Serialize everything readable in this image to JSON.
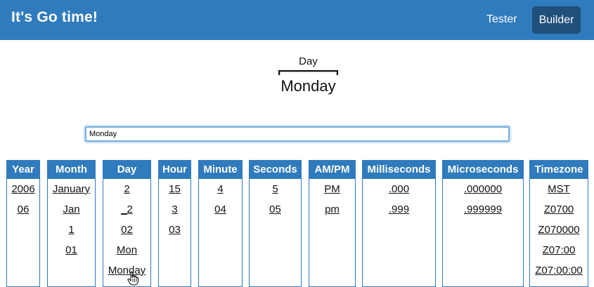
{
  "header": {
    "title": "It's Go time!",
    "nav": {
      "tester": "Tester",
      "builder": "Builder"
    }
  },
  "preview": {
    "label": "Day",
    "value": "Monday"
  },
  "format_input": {
    "value": "Monday"
  },
  "columns": [
    {
      "title": "Year",
      "options": [
        "2006",
        "06"
      ]
    },
    {
      "title": "Month",
      "options": [
        "January",
        "Jan",
        "1",
        "01"
      ]
    },
    {
      "title": "Day",
      "options": [
        "2",
        "_2",
        "02",
        "Mon",
        "Monday"
      ]
    },
    {
      "title": "Hour",
      "options": [
        "15",
        "3",
        "03"
      ]
    },
    {
      "title": "Minute",
      "options": [
        "4",
        "04"
      ]
    },
    {
      "title": "Seconds",
      "options": [
        "5",
        "05"
      ]
    },
    {
      "title": "AM/PM",
      "options": [
        "PM",
        "pm"
      ]
    },
    {
      "title": "Milliseconds",
      "options": [
        ".000",
        ".999"
      ]
    },
    {
      "title": "Microseconds",
      "options": [
        ".000000",
        ".999999"
      ]
    },
    {
      "title": "Timezone",
      "options": [
        "MST",
        "Z0700",
        "Z070000",
        "Z07:00",
        "Z07:00:00"
      ]
    }
  ],
  "colors": {
    "primary": "#2f7bbd",
    "builder_active": "#1f4f7a",
    "input_focus": "#7aaee0"
  }
}
